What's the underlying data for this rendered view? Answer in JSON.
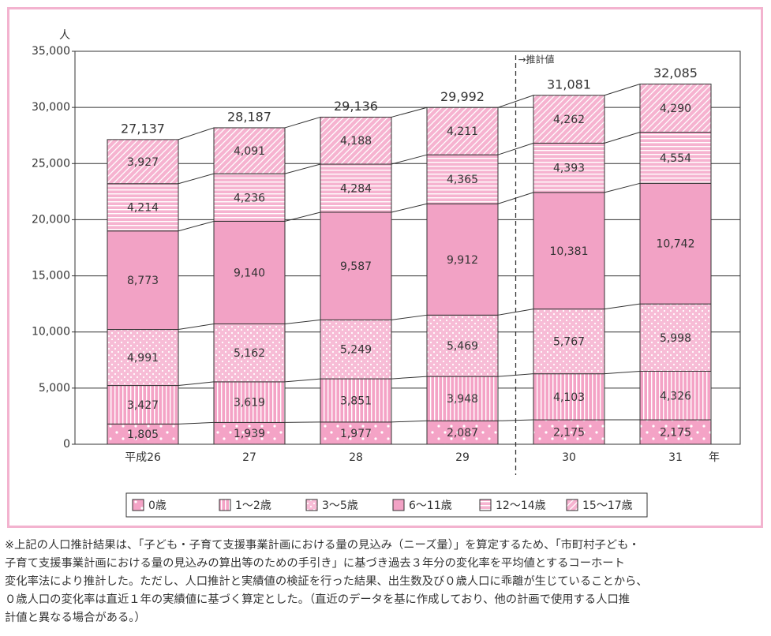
{
  "chart_data": {
    "type": "stacked-bar",
    "y_unit": "人",
    "x_unit": "年",
    "projection_label": "→推計値",
    "categories": [
      "平成26",
      "27",
      "28",
      "29",
      "30",
      "31"
    ],
    "series": [
      {
        "name": "0歳",
        "color": "#f4a3c6",
        "pattern": "sparse-dots",
        "values": [
          1805,
          1939,
          1977,
          2087,
          2175,
          2175
        ],
        "value_labels": [
          "1,805",
          "1,939",
          "1,977",
          "2,087",
          "2,175",
          "2,175"
        ]
      },
      {
        "name": "1～2歳",
        "color": "#f4a3c6",
        "pattern": "vertical-stripes",
        "values": [
          3427,
          3619,
          3851,
          3948,
          4103,
          4326
        ],
        "value_labels": [
          "3,427",
          "3,619",
          "3,851",
          "3,948",
          "4,103",
          "4,326"
        ]
      },
      {
        "name": "3～5歳",
        "color": "#f7bcd6",
        "pattern": "dots",
        "values": [
          4991,
          5162,
          5249,
          5469,
          5767,
          5998
        ],
        "value_labels": [
          "4,991",
          "5,162",
          "5,249",
          "5,469",
          "5,767",
          "5,998"
        ]
      },
      {
        "name": "6～11歳",
        "color": "#f2a2c5",
        "pattern": "solid",
        "values": [
          8773,
          9140,
          9587,
          9912,
          10381,
          10742
        ],
        "value_labels": [
          "8,773",
          "9,140",
          "9,587",
          "9,912",
          "10,381",
          "10,742"
        ]
      },
      {
        "name": "12～14歳",
        "color": "#f6b3d0",
        "pattern": "horizontal-stripes",
        "values": [
          4214,
          4236,
          4284,
          4365,
          4393,
          4554
        ],
        "value_labels": [
          "4,214",
          "4,236",
          "4,284",
          "4,365",
          "4,393",
          "4,554"
        ]
      },
      {
        "name": "15～17歳",
        "color": "#f6b3d0",
        "pattern": "diagonal",
        "values": [
          3927,
          4091,
          4188,
          4211,
          4262,
          4290
        ],
        "value_labels": [
          "3,927",
          "4,091",
          "4,188",
          "4,211",
          "4,262",
          "4,290"
        ]
      }
    ],
    "totals": [
      27137,
      28187,
      29136,
      29992,
      31081,
      32085
    ],
    "total_labels": [
      "27,137",
      "28,187",
      "29,136",
      "29,992",
      "31,081",
      "32,085"
    ],
    "ylim": [
      0,
      35000
    ],
    "yticks": [
      0,
      {
        "value": 5000,
        "label": "5,000"
      },
      {
        "value": 10000,
        "label": "10,000"
      },
      {
        "value": 15000,
        "label": "15,000"
      },
      {
        "value": 20000,
        "label": "20,000"
      },
      {
        "value": 25000,
        "label": "25,000"
      },
      {
        "value": 30000,
        "label": "30,000"
      },
      {
        "value": 35000,
        "label": "35,000"
      }
    ],
    "grid": true,
    "projection_start_index": 4,
    "legend": "bottom"
  },
  "footnote": [
    "※上記の人口推計結果は、「子ども・子育て支援事業計画における量の見込み（ニーズ量）」を算定するため、「市町村子ども・",
    "子育て支援事業計画における量の見込みの算出等のための手引き」に基づき過去３年分の変化率を平均値とするコーホート",
    "変化率法により推計した。ただし、人口推計と実績値の検証を行った結果、出生数及び０歳人口に乖離が生じていることから、",
    "０歳人口の変化率は直近１年の実績値に基づく算定とした。（直近のデータを基に作成しており、他の計画で使用する人口推",
    "計値と異なる場合がある。）"
  ]
}
